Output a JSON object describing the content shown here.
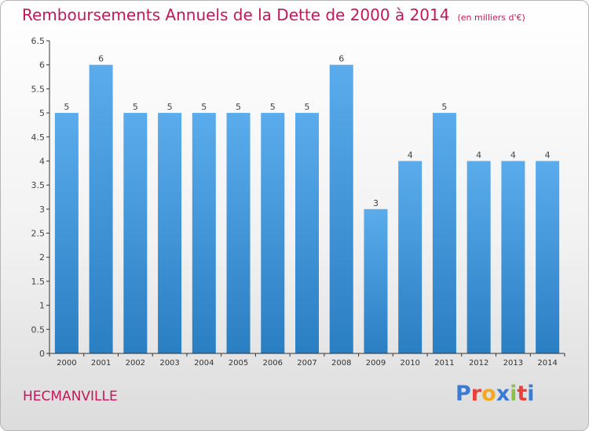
{
  "header": {
    "title": "Remboursements Annuels de la Dette de 2000 à 2014",
    "unit": "(en milliers d'€)"
  },
  "footer": {
    "commune": "HECMANVILLE",
    "logo_letters": [
      "P",
      "r",
      "o",
      "x",
      "i",
      "t",
      "i"
    ],
    "logo_colors": [
      "#3a7bd5",
      "#e8403a",
      "#f4a81d",
      "#3a7bd5",
      "#8bc34a",
      "#e8403a",
      "#3a7bd5"
    ]
  },
  "chart_data": {
    "type": "bar",
    "title": "Remboursements Annuels de la Dette de 2000 à 2014",
    "categories": [
      "2000",
      "2001",
      "2002",
      "2003",
      "2004",
      "2005",
      "2006",
      "2007",
      "2008",
      "2009",
      "2010",
      "2011",
      "2012",
      "2013",
      "2014"
    ],
    "values": [
      5,
      6,
      5,
      5,
      5,
      5,
      5,
      5,
      6,
      3,
      4,
      5,
      4,
      4,
      4
    ],
    "data_labels": [
      "5",
      "6",
      "5",
      "5",
      "5",
      "5",
      "5",
      "5",
      "6",
      "3",
      "4",
      "5",
      "4",
      "4",
      "4"
    ],
    "y_ticks": [
      "0",
      "0.5",
      "1",
      "1.5",
      "2",
      "2.5",
      "3",
      "3.5",
      "4",
      "4.5",
      "5",
      "5.5",
      "6",
      "6.5"
    ],
    "ylim": [
      0,
      6.5
    ],
    "grid": false,
    "legend": "none",
    "colors": {
      "bar_top": "#5aacec",
      "bar_bottom": "#2a7ec2",
      "axis": "#333333",
      "label": "#444444"
    }
  }
}
